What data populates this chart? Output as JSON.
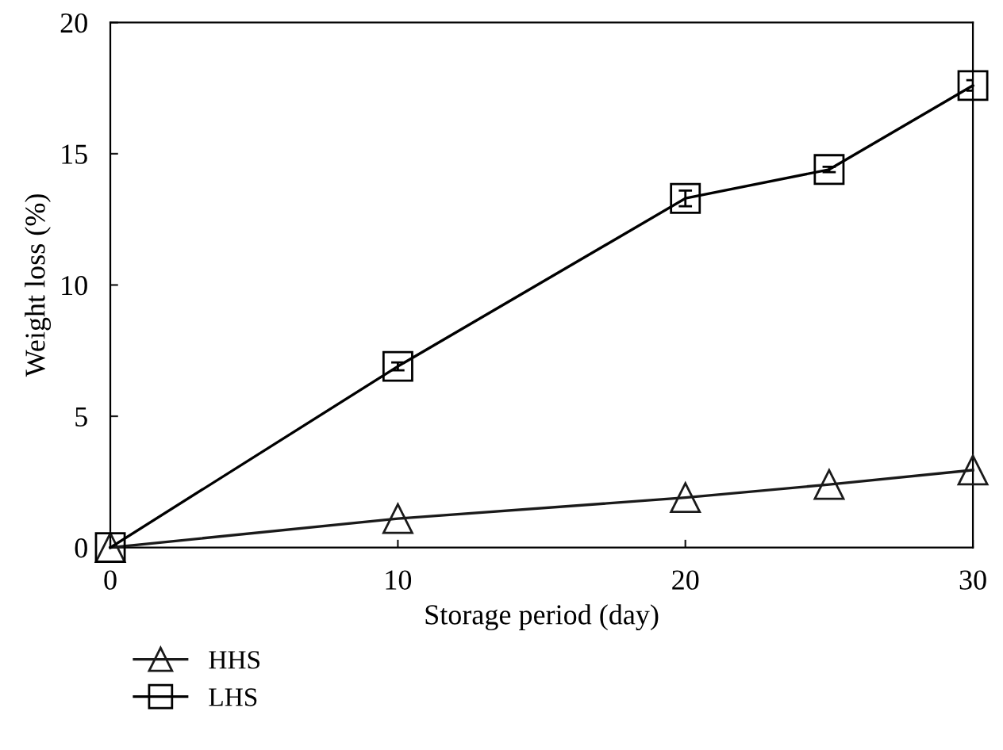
{
  "chart_data": {
    "type": "line",
    "xlabel": "Storage period (day)",
    "ylabel": "Weight loss (%)",
    "x": [
      0,
      10,
      20,
      25,
      30
    ],
    "series": [
      {
        "name": "HHS",
        "color": "#1a1a1a",
        "marker": "triangle",
        "values": [
          0,
          1.1,
          1.9,
          2.4,
          2.95
        ]
      },
      {
        "name": "LHS",
        "color": "#000000",
        "marker": "square",
        "values": [
          0,
          6.9,
          13.3,
          14.4,
          17.6
        ],
        "errors": [
          null,
          0.15,
          0.3,
          0.1,
          0.2
        ]
      }
    ],
    "xlim": [
      0,
      30
    ],
    "xticks": [
      0,
      10,
      20,
      30
    ],
    "ylim": [
      0,
      20
    ],
    "yticks": [
      0,
      5,
      10,
      15,
      20
    ],
    "grid": false,
    "legend": "bottom left",
    "line_style": "solid"
  }
}
